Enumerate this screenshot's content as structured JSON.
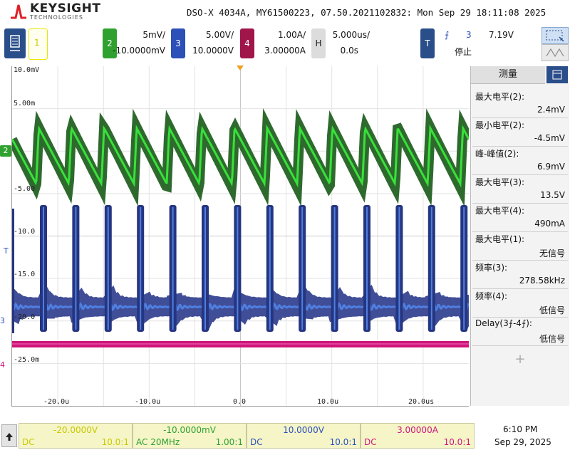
{
  "header": {
    "brand": "KEYSIGHT",
    "brand_sub": "TECHNOLOGIES",
    "title": "DSO-X 4034A, MY61500223, 07.50.2021102832: Mon Sep 29 18:11:08 2025"
  },
  "channels": {
    "ch1": {
      "num": "1",
      "color": "#e8e800"
    },
    "ch2": {
      "num": "2",
      "color": "#2fa12f",
      "scale": "5mV/",
      "offset": "-10.0000mV"
    },
    "ch3": {
      "num": "3",
      "color": "#2c4fb8",
      "scale": "5.00V/",
      "offset": "10.0000V"
    },
    "ch4": {
      "num": "4",
      "color": "#a0164a",
      "scale": "1.00A/",
      "offset": "3.00000A"
    },
    "horizontal": {
      "tag": "H",
      "scale": "5.000us/",
      "position": "0.0s"
    },
    "trigger": {
      "tag": "T",
      "edge": "⨍",
      "source": "3",
      "level": "7.19V",
      "status": "停止"
    }
  },
  "grid": {
    "y_labels": [
      "10.0mV",
      "5.00m",
      "-5.00",
      "-10.0",
      "-15.0",
      "-20.0",
      "-25.0m"
    ],
    "x_labels": [
      "-20.0u",
      "-10.0u",
      "0.0",
      "10.0u",
      "20.0us"
    ],
    "markers": {
      "ch2": "2",
      "ch3": "3",
      "ch4": "4",
      "trig": "T"
    }
  },
  "measurements": {
    "title": "测量",
    "items": [
      {
        "label": "最大电平(2):",
        "value": "2.4mV"
      },
      {
        "label": "最小电平(2):",
        "value": "-4.5mV"
      },
      {
        "label": "峰-峰值(2):",
        "value": "6.9mV"
      },
      {
        "label": "最大电平(3):",
        "value": "13.5V"
      },
      {
        "label": "最大电平(4):",
        "value": "490mA"
      },
      {
        "label": "最大电平(1):",
        "value": "无信号"
      },
      {
        "label": "频率(3):",
        "value": "278.58kHz"
      },
      {
        "label": "频率(4):",
        "value": "低信号"
      },
      {
        "label": "Delay(3⨍-4⨍):",
        "value": "低信号"
      }
    ],
    "add": "+"
  },
  "bottom": {
    "ch1": {
      "offset": "-20.0000V",
      "coupling": "DC",
      "probe": "10.0:1"
    },
    "ch2": {
      "offset": "-10.0000mV",
      "coupling": "AC 20MHz",
      "probe": "1.00:1"
    },
    "ch3": {
      "offset": "10.0000V",
      "coupling": "DC",
      "probe": "10.0:1"
    },
    "ch4": {
      "offset": "3.00000A",
      "coupling": "DC",
      "probe": "10.0:1"
    },
    "time": "6:10 PM",
    "date": "Sep 29, 2025"
  },
  "colors": {
    "ch1": "#e8e800",
    "ch2": "#2fa12f",
    "ch2_light": "#39e03a",
    "ch3": "#2c4fb8",
    "ch3_light": "#4f7fe0",
    "ch4": "#d0157a"
  }
}
